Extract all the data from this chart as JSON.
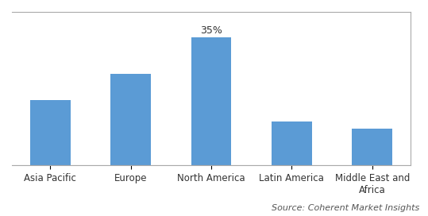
{
  "categories": [
    "Asia Pacific",
    "Europe",
    "North America",
    "Latin America",
    "Middle East and\nAfrica"
  ],
  "values": [
    18,
    25,
    35,
    12,
    10
  ],
  "bar_color": "#5B9BD5",
  "annotate_bar": 2,
  "annotate_label": "35%",
  "annotate_fontsize": 9,
  "source_text": "Source: Coherent Market Insights",
  "source_fontsize": 8,
  "ylabel": "",
  "xlabel": "",
  "ylim": [
    0,
    42
  ],
  "bar_width": 0.5,
  "background_color": "#ffffff",
  "tick_fontsize": 8.5,
  "grid_color": "#cccccc",
  "border_color": "#aaaaaa"
}
